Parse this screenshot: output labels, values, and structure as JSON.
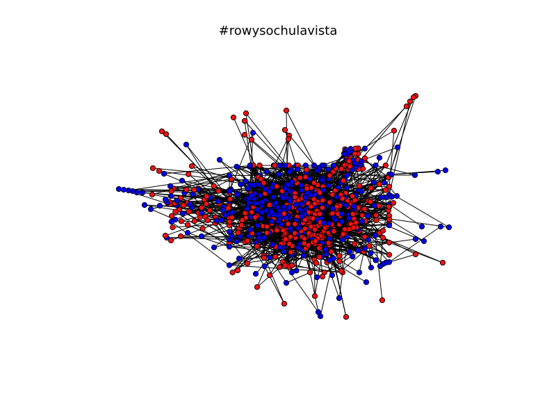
{
  "title": "#rowysochulavista",
  "graph": {
    "type": "network",
    "node_colors": {
      "group_a": "#0000ee",
      "group_b": "#ee1111"
    },
    "node_stroke": "#000000",
    "edge_color": "#000000"
  }
}
